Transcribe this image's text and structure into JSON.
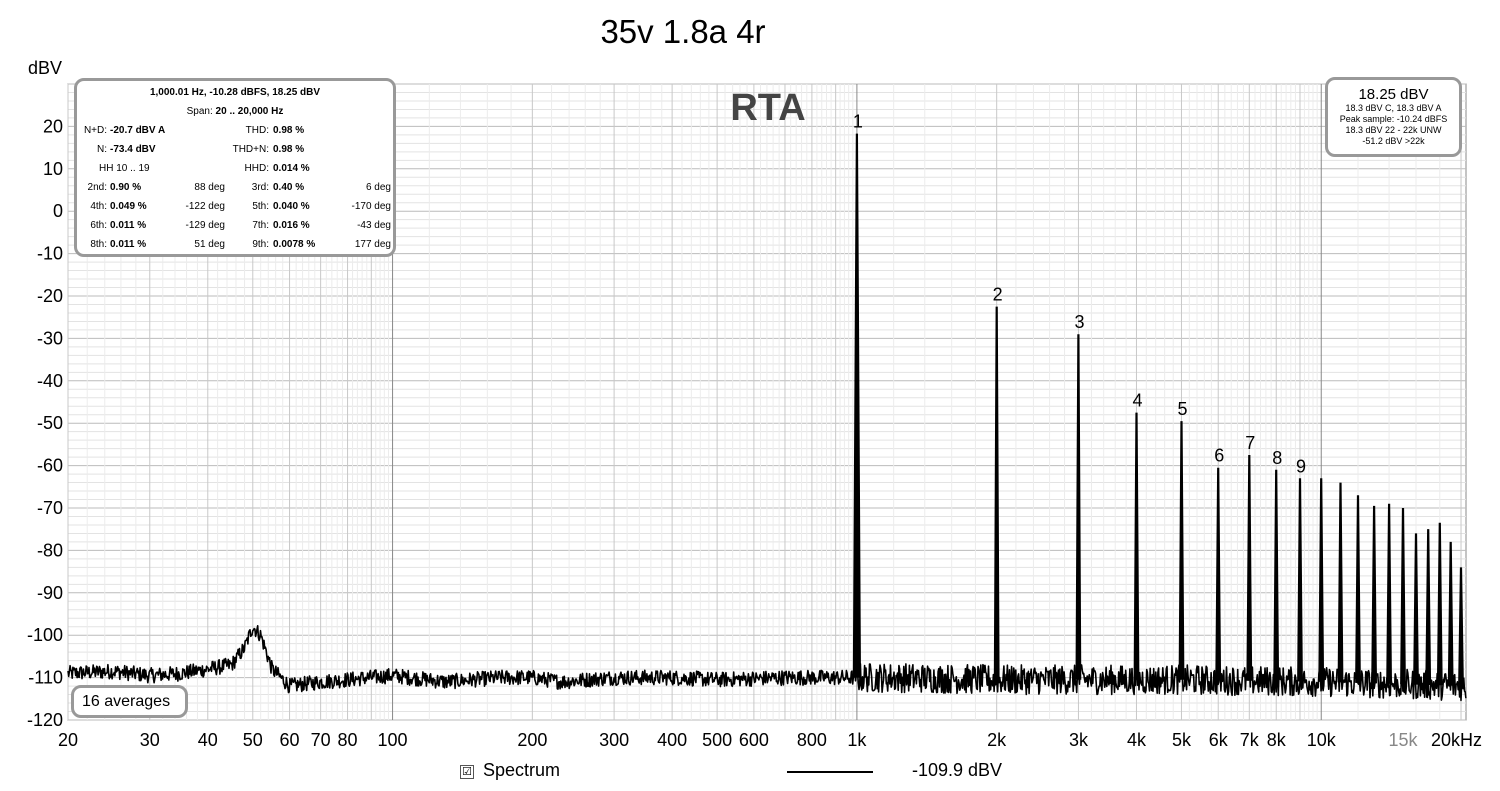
{
  "chart_data": {
    "type": "line",
    "title": "35v 1.8a 4r",
    "watermark": "RTA",
    "ylabel": "dBV",
    "x_unit": "Hz",
    "x_scale": "log",
    "xlim": [
      20,
      20500
    ],
    "ylim": [
      -120,
      30
    ],
    "grid": true,
    "y_ticks": [
      20,
      10,
      0,
      -10,
      -20,
      -30,
      -40,
      -50,
      -60,
      -70,
      -80,
      -90,
      -100,
      -110,
      -120
    ],
    "x_ticks": [
      {
        "v": 20,
        "label": "20"
      },
      {
        "v": 30,
        "label": "30"
      },
      {
        "v": 40,
        "label": "40"
      },
      {
        "v": 50,
        "label": "50"
      },
      {
        "v": 60,
        "label": "60"
      },
      {
        "v": 70,
        "label": "70"
      },
      {
        "v": 80,
        "label": "80"
      },
      {
        "v": 100,
        "label": "100"
      },
      {
        "v": 200,
        "label": "200"
      },
      {
        "v": 300,
        "label": "300"
      },
      {
        "v": 400,
        "label": "400"
      },
      {
        "v": 500,
        "label": "500"
      },
      {
        "v": 600,
        "label": "600"
      },
      {
        "v": 800,
        "label": "800"
      },
      {
        "v": 1000,
        "label": "1k"
      },
      {
        "v": 2000,
        "label": "2k"
      },
      {
        "v": 3000,
        "label": "3k"
      },
      {
        "v": 4000,
        "label": "4k"
      },
      {
        "v": 5000,
        "label": "5k"
      },
      {
        "v": 6000,
        "label": "6k"
      },
      {
        "v": 7000,
        "label": "7k"
      },
      {
        "v": 8000,
        "label": "8k"
      },
      {
        "v": 10000,
        "label": "10k"
      },
      {
        "v": 15000,
        "label": "15k",
        "muted": true
      },
      {
        "v": 20000,
        "label": "20kHz"
      }
    ],
    "series": [
      {
        "name": "Spectrum",
        "noise_floor": [
          [
            20,
            -109
          ],
          [
            25,
            -108.5
          ],
          [
            30,
            -109.5
          ],
          [
            35,
            -109
          ],
          [
            40,
            -108
          ],
          [
            45,
            -107
          ],
          [
            48,
            -103
          ],
          [
            50,
            -98
          ],
          [
            52,
            -100
          ],
          [
            55,
            -108
          ],
          [
            60,
            -112
          ],
          [
            70,
            -111
          ],
          [
            80,
            -110.5
          ],
          [
            100,
            -109.5
          ],
          [
            130,
            -111
          ],
          [
            170,
            -110
          ],
          [
            200,
            -110
          ],
          [
            230,
            -111
          ],
          [
            300,
            -110
          ],
          [
            400,
            -110
          ],
          [
            500,
            -110.5
          ],
          [
            700,
            -110
          ],
          [
            900,
            -110
          ],
          [
            1200,
            -110
          ],
          [
            2000,
            -110.5
          ],
          [
            5000,
            -110.5
          ],
          [
            10000,
            -111
          ],
          [
            20500,
            -112
          ]
        ],
        "peaks": [
          {
            "label": "1",
            "f": 1000,
            "db": 18.3
          },
          {
            "label": "2",
            "f": 2000,
            "db": -22.5
          },
          {
            "label": "3",
            "f": 3000,
            "db": -29
          },
          {
            "label": "4",
            "f": 4000,
            "db": -47.5
          },
          {
            "label": "5",
            "f": 5000,
            "db": -49.5
          },
          {
            "label": "6",
            "f": 6000,
            "db": -60.5
          },
          {
            "label": "7",
            "f": 7000,
            "db": -57.5
          },
          {
            "label": "8",
            "f": 8000,
            "db": -61
          },
          {
            "label": "9",
            "f": 9000,
            "db": -63
          },
          {
            "label": "",
            "f": 10000,
            "db": -63
          },
          {
            "label": "",
            "f": 11000,
            "db": -64
          },
          {
            "label": "",
            "f": 12000,
            "db": -67
          },
          {
            "label": "",
            "f": 13000,
            "db": -69.5
          },
          {
            "label": "",
            "f": 14000,
            "db": -69
          },
          {
            "label": "",
            "f": 15000,
            "db": -70
          },
          {
            "label": "",
            "f": 16000,
            "db": -76
          },
          {
            "label": "",
            "f": 17000,
            "db": -75
          },
          {
            "label": "",
            "f": 18000,
            "db": -73.5
          },
          {
            "label": "",
            "f": 19000,
            "db": -78
          },
          {
            "label": "",
            "f": 20000,
            "db": -84
          }
        ]
      }
    ]
  },
  "stats": {
    "header": "1,000.01 Hz, -10.28 dBFS, 18.25 dBV",
    "span_label": "Span:",
    "span_value": "20 .. 20,000 Hz",
    "nd_label": "N+D:",
    "nd_value": "-20.7 dBV A",
    "thd_label": "THD:",
    "thd_value": "0.98 %",
    "n_label": "N:",
    "n_value": "-73.4 dBV",
    "thdn_label": "THD+N:",
    "thdn_value": "0.98 %",
    "hh_label": "HH 10 .. 19",
    "hhd_label": "HHD:",
    "hhd_value": "0.014 %",
    "harmonics": [
      {
        "label": "2nd:",
        "value": "0.90 %",
        "phase": "88 deg"
      },
      {
        "label": "3rd:",
        "value": "0.40 %",
        "phase": "6 deg"
      },
      {
        "label": "4th:",
        "value": "0.049 %",
        "phase": "-122 deg"
      },
      {
        "label": "5th:",
        "value": "0.040 %",
        "phase": "-170 deg"
      },
      {
        "label": "6th:",
        "value": "0.011 %",
        "phase": "-129 deg"
      },
      {
        "label": "7th:",
        "value": "0.016 %",
        "phase": "-43 deg"
      },
      {
        "label": "8th:",
        "value": "0.011 %",
        "phase": "51 deg"
      },
      {
        "label": "9th:",
        "value": "0.0078 %",
        "phase": "177 deg"
      }
    ]
  },
  "level": {
    "main": "18.25 dBV",
    "line1": "18.3 dBV C, 18.3 dBV A",
    "line2": "Peak sample: -10.24 dBFS",
    "line3": "18.3 dBV 22 - 22k UNW",
    "line4": "-51.2 dBV >22k"
  },
  "averages": "16 averages",
  "legend": {
    "check": "☑",
    "name": "Spectrum",
    "value": "-109.9 dBV"
  }
}
